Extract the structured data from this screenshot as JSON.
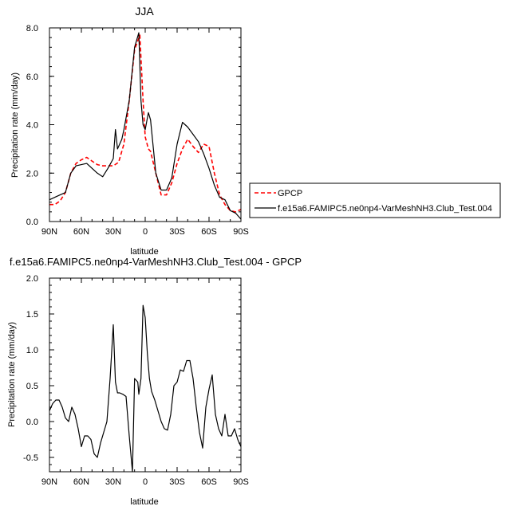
{
  "chart_data": [
    {
      "type": "line",
      "title": "JJA",
      "xlabel": "latitude",
      "ylabel": "Precipitation rate (mm/day)",
      "xlim": [
        90,
        -90
      ],
      "ylim": [
        0,
        8
      ],
      "xticks": [
        90,
        60,
        30,
        0,
        -30,
        -60,
        -90
      ],
      "xtick_labels": [
        "90N",
        "60N",
        "30N",
        "0",
        "30S",
        "60S",
        "90S"
      ],
      "yticks": [
        0,
        2,
        4,
        6,
        8
      ],
      "ytick_labels": [
        "0.0",
        "2.0",
        "4.0",
        "6.0",
        "8.0"
      ],
      "legend_position": "right",
      "series": [
        {
          "name": "GPCP",
          "color": "#ff0000",
          "dash": "dashed",
          "x": [
            90,
            85,
            80,
            75,
            70,
            65,
            60,
            55,
            50,
            45,
            40,
            35,
            30,
            25,
            20,
            15,
            10,
            5,
            2,
            0,
            -3,
            -5,
            -10,
            -15,
            -20,
            -25,
            -30,
            -35,
            -40,
            -45,
            -50,
            -55,
            -60,
            -65,
            -70,
            -75,
            -80,
            -85,
            -90
          ],
          "y": [
            0.7,
            0.7,
            0.85,
            1.2,
            2.0,
            2.4,
            2.55,
            2.65,
            2.5,
            2.35,
            2.3,
            2.3,
            2.3,
            2.45,
            3.2,
            5.0,
            7.1,
            7.7,
            5.0,
            3.5,
            3.0,
            2.9,
            2.0,
            1.1,
            1.1,
            1.6,
            2.4,
            3.0,
            3.4,
            3.1,
            2.85,
            3.2,
            3.1,
            2.0,
            1.1,
            0.7,
            0.45,
            0.4,
            0.5
          ]
        },
        {
          "name": "f.e15a6.FAMIPC5.ne0np4-VarMeshNH3.Club_Test.004",
          "color": "#000000",
          "dash": "solid",
          "x": [
            90,
            85,
            80,
            75,
            70,
            65,
            60,
            55,
            50,
            45,
            40,
            35,
            30,
            28,
            26,
            22,
            20,
            15,
            10,
            6,
            4,
            2,
            0,
            -3,
            -5,
            -10,
            -15,
            -20,
            -25,
            -30,
            -35,
            -40,
            -45,
            -50,
            -55,
            -60,
            -65,
            -70,
            -75,
            -80,
            -85,
            -90
          ],
          "y": [
            0.9,
            1.0,
            1.1,
            1.2,
            2.0,
            2.3,
            2.35,
            2.4,
            2.2,
            2.0,
            1.85,
            2.2,
            2.6,
            3.8,
            3.0,
            3.4,
            3.8,
            5.0,
            7.2,
            7.8,
            5.0,
            4.0,
            3.8,
            4.5,
            4.2,
            2.0,
            1.3,
            1.3,
            1.8,
            3.2,
            4.1,
            3.9,
            3.6,
            3.3,
            2.8,
            2.2,
            1.5,
            1.0,
            0.9,
            0.45,
            0.35,
            0.1
          ]
        }
      ]
    },
    {
      "type": "line",
      "title": "f.e15a6.FAMIPC5.ne0np4-VarMeshNH3.Club_Test.004 - GPCP",
      "xlabel": "latitude",
      "ylabel": "Precipitation rate (mm/day)",
      "xlim": [
        90,
        -90
      ],
      "ylim": [
        -0.7,
        2.0
      ],
      "xticks": [
        90,
        60,
        30,
        0,
        -30,
        -60,
        -90
      ],
      "xtick_labels": [
        "90N",
        "60N",
        "30N",
        "0",
        "30S",
        "60S",
        "90S"
      ],
      "yticks": [
        -0.5,
        0,
        0.5,
        1.0,
        1.5,
        2.0
      ],
      "ytick_labels": [
        "-0.5",
        "0.0",
        "0.5",
        "1.0",
        "1.5",
        "2.0"
      ],
      "series": [
        {
          "color": "#000000",
          "dash": "solid",
          "x": [
            90,
            87,
            84,
            81,
            78,
            75,
            72,
            69,
            66,
            63,
            60,
            57,
            54,
            51,
            48,
            45,
            42,
            39,
            36,
            33,
            30,
            28,
            26,
            24,
            21,
            18,
            15,
            12,
            10,
            7,
            6,
            4,
            2,
            0,
            -2,
            -4,
            -6,
            -9,
            -12,
            -15,
            -18,
            -21,
            -24,
            -27,
            -30,
            -33,
            -36,
            -39,
            -42,
            -45,
            -48,
            -51,
            -54,
            -57,
            -60,
            -63,
            -66,
            -69,
            -72,
            -75,
            -78,
            -81,
            -84,
            -87,
            -90
          ],
          "y": [
            0.15,
            0.25,
            0.3,
            0.3,
            0.2,
            0.05,
            0.0,
            0.2,
            0.1,
            -0.1,
            -0.35,
            -0.2,
            -0.2,
            -0.25,
            -0.45,
            -0.5,
            -0.3,
            -0.15,
            0.0,
            0.6,
            1.35,
            0.55,
            0.4,
            0.4,
            0.38,
            0.35,
            -0.2,
            -0.7,
            0.6,
            0.55,
            0.38,
            0.6,
            1.62,
            1.45,
            0.95,
            0.6,
            0.42,
            0.3,
            0.15,
            0.0,
            -0.1,
            -0.12,
            0.1,
            0.5,
            0.55,
            0.72,
            0.7,
            0.85,
            0.85,
            0.6,
            0.2,
            -0.15,
            -0.37,
            0.2,
            0.45,
            0.65,
            0.1,
            -0.1,
            -0.2,
            0.1,
            -0.2,
            -0.2,
            -0.1,
            -0.25,
            -0.35
          ]
        }
      ]
    }
  ]
}
